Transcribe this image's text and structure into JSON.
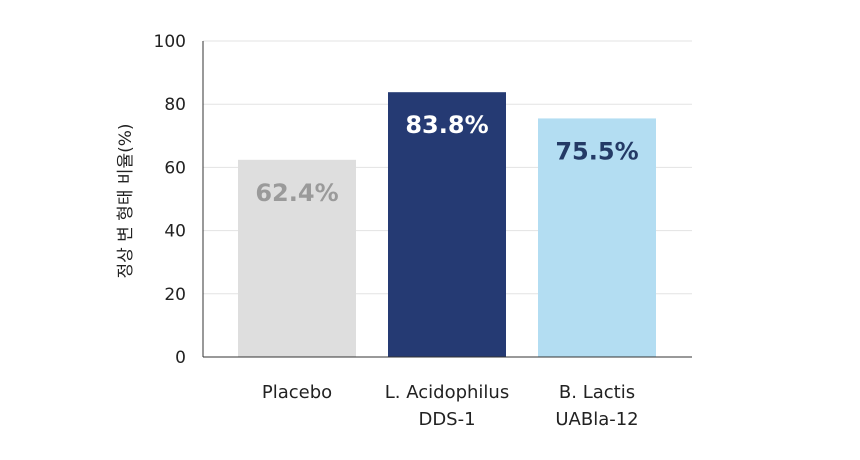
{
  "chart_data": {
    "type": "bar",
    "title": "",
    "xlabel": "",
    "ylabel": "정상 변 형태 비율(%)",
    "ylim": [
      0,
      100
    ],
    "yticks": [
      "0",
      "20",
      "40",
      "60",
      "80",
      "100"
    ],
    "grid": true,
    "categories": [
      [
        "Placebo"
      ],
      [
        "L. Acidophilus",
        "DDS-1"
      ],
      [
        "B. Lactis",
        "UABla-12"
      ]
    ],
    "values": [
      62.4,
      83.8,
      75.5
    ],
    "data_labels": [
      "62.4%",
      "83.8%",
      "75.5%"
    ],
    "bar_colors": [
      "#dedede",
      "#253a73",
      "#b3ddf2"
    ],
    "label_colors": [
      "#9a9a9a",
      "#ffffff",
      "#243a66"
    ],
    "gridline_color": "#e3e3e3",
    "axis_color": "#333333"
  }
}
